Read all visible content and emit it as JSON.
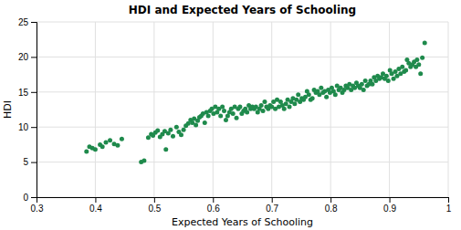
{
  "chart_data": {
    "type": "scatter",
    "title": "HDI and Expected Years of Schooling",
    "xlabel": "Expected Years of Schooling",
    "ylabel": "HDI",
    "color": "#1f8a4c",
    "grid": true,
    "xlim": [
      0.3,
      1.0
    ],
    "ylim": [
      0,
      25
    ],
    "xticks": [
      0.3,
      0.4,
      0.5,
      0.6,
      0.7,
      0.8,
      0.9,
      1.0
    ],
    "yticks": [
      0,
      5,
      10,
      15,
      20,
      25
    ],
    "x": [
      0.385,
      0.39,
      0.395,
      0.4,
      0.408,
      0.412,
      0.418,
      0.425,
      0.432,
      0.438,
      0.445,
      0.478,
      0.483,
      0.49,
      0.495,
      0.498,
      0.502,
      0.506,
      0.51,
      0.514,
      0.518,
      0.52,
      0.524,
      0.528,
      0.532,
      0.538,
      0.542,
      0.546,
      0.55,
      0.554,
      0.558,
      0.562,
      0.565,
      0.568,
      0.571,
      0.574,
      0.577,
      0.58,
      0.583,
      0.586,
      0.589,
      0.592,
      0.595,
      0.598,
      0.601,
      0.604,
      0.607,
      0.61,
      0.613,
      0.616,
      0.619,
      0.622,
      0.625,
      0.628,
      0.631,
      0.634,
      0.637,
      0.64,
      0.643,
      0.646,
      0.649,
      0.652,
      0.655,
      0.658,
      0.661,
      0.664,
      0.667,
      0.67,
      0.673,
      0.676,
      0.679,
      0.682,
      0.685,
      0.688,
      0.691,
      0.694,
      0.697,
      0.7,
      0.703,
      0.706,
      0.709,
      0.712,
      0.715,
      0.718,
      0.721,
      0.724,
      0.727,
      0.73,
      0.733,
      0.736,
      0.739,
      0.742,
      0.745,
      0.748,
      0.751,
      0.754,
      0.757,
      0.76,
      0.763,
      0.766,
      0.769,
      0.772,
      0.775,
      0.778,
      0.781,
      0.784,
      0.787,
      0.79,
      0.793,
      0.796,
      0.799,
      0.802,
      0.805,
      0.808,
      0.811,
      0.814,
      0.817,
      0.82,
      0.823,
      0.826,
      0.829,
      0.832,
      0.835,
      0.838,
      0.841,
      0.844,
      0.847,
      0.85,
      0.853,
      0.856,
      0.859,
      0.862,
      0.865,
      0.868,
      0.871,
      0.874,
      0.877,
      0.88,
      0.883,
      0.886,
      0.889,
      0.892,
      0.895,
      0.898,
      0.901,
      0.904,
      0.907,
      0.91,
      0.913,
      0.916,
      0.919,
      0.922,
      0.925,
      0.928,
      0.93,
      0.933,
      0.936,
      0.939,
      0.942,
      0.945,
      0.947,
      0.95,
      0.953,
      0.956,
      0.96
    ],
    "values": [
      6.5,
      7.2,
      7.0,
      6.8,
      7.5,
      7.2,
      7.8,
      8.1,
      7.6,
      7.4,
      8.3,
      5.0,
      5.2,
      8.5,
      9.0,
      8.8,
      9.2,
      9.5,
      8.6,
      9.0,
      9.4,
      6.8,
      9.1,
      9.6,
      8.7,
      10.0,
      9.3,
      8.9,
      9.6,
      10.2,
      10.5,
      11.0,
      10.6,
      11.2,
      10.3,
      10.9,
      11.4,
      11.6,
      11.9,
      10.6,
      12.1,
      11.6,
      12.3,
      12.6,
      11.9,
      12.9,
      12.1,
      12.6,
      11.6,
      12.9,
      12.3,
      11.0,
      11.6,
      12.1,
      12.6,
      11.9,
      12.9,
      11.3,
      12.6,
      12.9,
      11.9,
      12.3,
      12.6,
      12.1,
      13.1,
      12.6,
      12.9,
      12.6,
      12.9,
      12.1,
      12.6,
      13.1,
      12.3,
      13.6,
      12.9,
      12.6,
      13.1,
      12.9,
      13.6,
      12.6,
      13.9,
      12.9,
      13.6,
      13.1,
      12.6,
      13.3,
      13.9,
      12.9,
      13.6,
      14.1,
      13.3,
      13.9,
      14.6,
      13.6,
      14.1,
      13.9,
      14.3,
      15.1,
      14.6,
      13.9,
      14.1,
      15.3,
      14.9,
      15.1,
      14.6,
      15.6,
      14.9,
      15.1,
      14.3,
      15.3,
      14.9,
      15.6,
      15.1,
      14.6,
      15.9,
      15.3,
      15.6,
      14.9,
      15.3,
      15.9,
      15.6,
      16.1,
      15.3,
      15.9,
      15.6,
      16.3,
      15.9,
      15.6,
      16.1,
      15.3,
      16.6,
      15.9,
      16.1,
      16.6,
      16.1,
      17.1,
      16.6,
      17.3,
      16.9,
      17.1,
      17.6,
      16.9,
      17.3,
      16.6,
      18.1,
      17.6,
      16.9,
      17.9,
      17.3,
      18.3,
      17.6,
      18.6,
      17.9,
      18.1,
      19.6,
      19.1,
      18.6,
      18.9,
      19.3,
      18.6,
      19.6,
      18.9,
      17.6,
      19.9,
      22.0
    ]
  }
}
